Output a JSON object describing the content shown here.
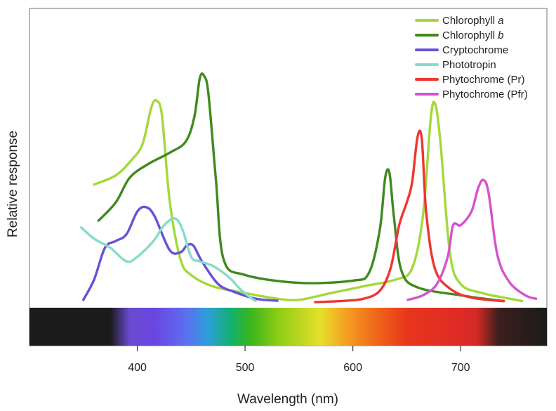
{
  "chart_data": {
    "type": "line",
    "title": "",
    "xlabel": "Wavelength (nm)",
    "ylabel": "Relative response",
    "xlim": [
      300,
      780
    ],
    "ylim": [
      0,
      1
    ],
    "x_ticks": [
      400,
      500,
      600,
      700
    ],
    "x_tick_labels": [
      "400",
      "500",
      "600",
      "700"
    ],
    "y_ticks_shown": false,
    "grid": false,
    "legend_position": "top-right",
    "spectrum_bar": true,
    "series": [
      {
        "name": "Chlorophyll a",
        "legend": {
          "text": "Chlorophyll ",
          "italic": "a"
        },
        "color": "#a3d93a",
        "points": [
          [
            360,
            0.52
          ],
          [
            380,
            0.56
          ],
          [
            395,
            0.63
          ],
          [
            405,
            0.7
          ],
          [
            413,
            0.86
          ],
          [
            418,
            0.89
          ],
          [
            423,
            0.82
          ],
          [
            430,
            0.45
          ],
          [
            440,
            0.19
          ],
          [
            450,
            0.12
          ],
          [
            470,
            0.07
          ],
          [
            500,
            0.04
          ],
          [
            530,
            0.015
          ],
          [
            550,
            0.01
          ],
          [
            580,
            0.04
          ],
          [
            610,
            0.07
          ],
          [
            640,
            0.1
          ],
          [
            655,
            0.15
          ],
          [
            665,
            0.38
          ],
          [
            672,
            0.8
          ],
          [
            676,
            0.88
          ],
          [
            681,
            0.72
          ],
          [
            690,
            0.22
          ],
          [
            700,
            0.08
          ],
          [
            720,
            0.04
          ],
          [
            740,
            0.02
          ],
          [
            757,
            0.005
          ]
        ]
      },
      {
        "name": "Chlorophyll b",
        "legend": {
          "text": "Chlorophyll ",
          "italic": "b"
        },
        "color": "#3f8a1f",
        "points": [
          [
            364,
            0.36
          ],
          [
            380,
            0.44
          ],
          [
            393,
            0.55
          ],
          [
            410,
            0.61
          ],
          [
            430,
            0.66
          ],
          [
            445,
            0.71
          ],
          [
            453,
            0.82
          ],
          [
            458,
            0.99
          ],
          [
            462,
            1.0
          ],
          [
            466,
            0.92
          ],
          [
            473,
            0.54
          ],
          [
            480,
            0.19
          ],
          [
            500,
            0.12
          ],
          [
            550,
            0.085
          ],
          [
            600,
            0.095
          ],
          [
            615,
            0.13
          ],
          [
            625,
            0.32
          ],
          [
            630,
            0.55
          ],
          [
            634,
            0.57
          ],
          [
            638,
            0.38
          ],
          [
            645,
            0.14
          ],
          [
            660,
            0.065
          ],
          [
            700,
            0.03
          ],
          [
            730,
            0.01
          ],
          [
            740,
            0.005
          ]
        ]
      },
      {
        "name": "Cryptochrome",
        "legend": {
          "text": "Cryptochrome",
          "italic": ""
        },
        "color": "#6a50d8",
        "points": [
          [
            350,
            0.01
          ],
          [
            360,
            0.1
          ],
          [
            370,
            0.24
          ],
          [
            380,
            0.27
          ],
          [
            390,
            0.3
          ],
          [
            400,
            0.4
          ],
          [
            408,
            0.42
          ],
          [
            416,
            0.38
          ],
          [
            430,
            0.23
          ],
          [
            440,
            0.22
          ],
          [
            446,
            0.25
          ],
          [
            452,
            0.25
          ],
          [
            460,
            0.18
          ],
          [
            475,
            0.08
          ],
          [
            490,
            0.045
          ],
          [
            510,
            0.015
          ],
          [
            530,
            0.006
          ]
        ]
      },
      {
        "name": "Phototropin",
        "legend": {
          "text": "Phototropin",
          "italic": ""
        },
        "color": "#85dccb",
        "points": [
          [
            348,
            0.33
          ],
          [
            360,
            0.28
          ],
          [
            375,
            0.24
          ],
          [
            390,
            0.18
          ],
          [
            400,
            0.2
          ],
          [
            415,
            0.27
          ],
          [
            425,
            0.34
          ],
          [
            435,
            0.37
          ],
          [
            442,
            0.32
          ],
          [
            450,
            0.2
          ],
          [
            458,
            0.18
          ],
          [
            470,
            0.16
          ],
          [
            485,
            0.11
          ],
          [
            495,
            0.06
          ],
          [
            505,
            0.02
          ],
          [
            510,
            0.005
          ]
        ]
      },
      {
        "name": "Phytochrome (Pr)",
        "legend": {
          "text": "Phytochrome (Pr)",
          "italic": ""
        },
        "color": "#ee3633",
        "points": [
          [
            565,
            0.0
          ],
          [
            590,
            0.005
          ],
          [
            610,
            0.015
          ],
          [
            625,
            0.05
          ],
          [
            635,
            0.15
          ],
          [
            643,
            0.34
          ],
          [
            650,
            0.44
          ],
          [
            655,
            0.53
          ],
          [
            660,
            0.73
          ],
          [
            664,
            0.72
          ],
          [
            668,
            0.4
          ],
          [
            676,
            0.15
          ],
          [
            690,
            0.06
          ],
          [
            710,
            0.02
          ],
          [
            740,
            0.004
          ]
        ]
      },
      {
        "name": "Phytochrome (Pfr)",
        "legend": {
          "text": "Phytochrome (Pfr)",
          "italic": ""
        },
        "color": "#d453cf",
        "points": [
          [
            651,
            0.01
          ],
          [
            665,
            0.03
          ],
          [
            678,
            0.08
          ],
          [
            688,
            0.2
          ],
          [
            693,
            0.34
          ],
          [
            700,
            0.34
          ],
          [
            710,
            0.4
          ],
          [
            716,
            0.5
          ],
          [
            721,
            0.54
          ],
          [
            726,
            0.48
          ],
          [
            734,
            0.21
          ],
          [
            745,
            0.09
          ],
          [
            760,
            0.03
          ],
          [
            770,
            0.015
          ]
        ]
      }
    ]
  },
  "colors": {
    "frame": "#8a8a8a",
    "axis": "#333333",
    "spectrum_stops": [
      {
        "nm": 300,
        "color": "#1b1b1b"
      },
      {
        "nm": 375,
        "color": "#1b1b1b"
      },
      {
        "nm": 393,
        "color": "#6a4ad0"
      },
      {
        "nm": 415,
        "color": "#6a45e0"
      },
      {
        "nm": 445,
        "color": "#5d6ef0"
      },
      {
        "nm": 465,
        "color": "#2d9edc"
      },
      {
        "nm": 487,
        "color": "#12b06e"
      },
      {
        "nm": 505,
        "color": "#3ab51c"
      },
      {
        "nm": 530,
        "color": "#8ccc14"
      },
      {
        "nm": 570,
        "color": "#e6e02a"
      },
      {
        "nm": 592,
        "color": "#f5a322"
      },
      {
        "nm": 620,
        "color": "#f06a1a"
      },
      {
        "nm": 650,
        "color": "#e8361c"
      },
      {
        "nm": 700,
        "color": "#e02a26"
      },
      {
        "nm": 715,
        "color": "#d42a26"
      },
      {
        "nm": 735,
        "color": "#3b1f1c"
      },
      {
        "nm": 780,
        "color": "#1b1b1b"
      }
    ]
  }
}
